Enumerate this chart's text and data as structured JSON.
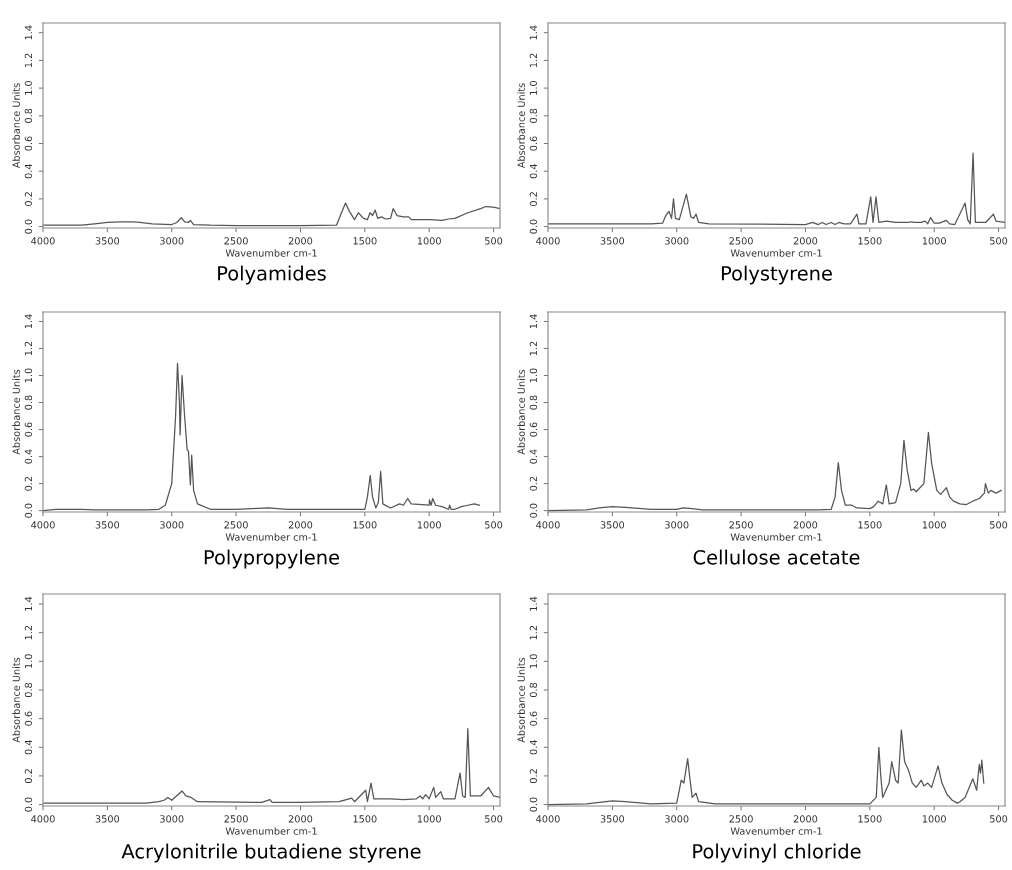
{
  "chart_data": [
    {
      "type": "line",
      "title": "Polyamides",
      "xlabel": "Wavenumber cm-1",
      "ylabel": "Absorbance Units",
      "xlim": [
        4000,
        450
      ],
      "ylim": [
        -0.01,
        1.47
      ],
      "xticks": [
        4000,
        3500,
        3000,
        2500,
        2000,
        1500,
        1000,
        500
      ],
      "yticks": [
        {
          "value": 0,
          "label": "0.0"
        },
        {
          "value": 0.2,
          "label": "0.2"
        },
        {
          "value": 0.4,
          "label": "0.4"
        },
        {
          "value": 0.6,
          "label": "0.6"
        },
        {
          "value": 0.8,
          "label": "0.8"
        },
        {
          "value": 1.0,
          "label": "1.0"
        },
        {
          "value": 1.2,
          "label": "1.2"
        },
        {
          "value": 1.4,
          "label": "1.4"
        }
      ],
      "grid": false,
      "series": [
        {
          "color": "#555555",
          "x": [
            4000,
            3700,
            3600,
            3500,
            3400,
            3300,
            3250,
            3150,
            3000,
            2960,
            2925,
            2900,
            2870,
            2855,
            2830,
            2700,
            2500,
            2000,
            1720,
            1690,
            1650,
            1620,
            1580,
            1550,
            1510,
            1480,
            1460,
            1440,
            1420,
            1400,
            1370,
            1340,
            1300,
            1280,
            1250,
            1200,
            1160,
            1140,
            1000,
            900,
            850,
            800,
            700,
            600,
            560,
            500,
            450
          ],
          "values": [
            0.01,
            0.01,
            0.02,
            0.03,
            0.035,
            0.035,
            0.03,
            0.02,
            0.015,
            0.03,
            0.065,
            0.035,
            0.03,
            0.045,
            0.015,
            0.01,
            0.008,
            0.008,
            0.01,
            0.08,
            0.17,
            0.11,
            0.05,
            0.1,
            0.06,
            0.05,
            0.1,
            0.08,
            0.12,
            0.06,
            0.07,
            0.055,
            0.06,
            0.13,
            0.08,
            0.07,
            0.07,
            0.05,
            0.05,
            0.045,
            0.055,
            0.06,
            0.1,
            0.13,
            0.145,
            0.14,
            0.13
          ]
        }
      ]
    },
    {
      "type": "line",
      "title": "Polystyrene",
      "xlabel": "Wavenumber cm-1",
      "ylabel": "Absorbance Units",
      "xlim": [
        4000,
        450
      ],
      "ylim": [
        -0.01,
        1.47
      ],
      "xticks": [
        4000,
        3500,
        3000,
        2500,
        2000,
        1500,
        1000,
        500
      ],
      "yticks": [
        {
          "value": 0,
          "label": "0.0"
        },
        {
          "value": 0.2,
          "label": "0.2"
        },
        {
          "value": 0.4,
          "label": "0.4"
        },
        {
          "value": 0.6,
          "label": "0.6"
        },
        {
          "value": 0.8,
          "label": "0.8"
        },
        {
          "value": 1.0,
          "label": "1.0"
        },
        {
          "value": 1.2,
          "label": "1.2"
        },
        {
          "value": 1.4,
          "label": "1.4"
        }
      ],
      "grid": false,
      "series": [
        {
          "color": "#555555",
          "x": [
            4000,
            3200,
            3110,
            3085,
            3060,
            3040,
            3025,
            3010,
            2980,
            2925,
            2890,
            2870,
            2850,
            2830,
            2750,
            2000,
            1945,
            1900,
            1870,
            1840,
            1800,
            1770,
            1740,
            1700,
            1650,
            1600,
            1585,
            1530,
            1493,
            1475,
            1452,
            1430,
            1370,
            1300,
            1200,
            1180,
            1155,
            1100,
            1070,
            1050,
            1028,
            1000,
            960,
            906,
            880,
            840,
            760,
            740,
            720,
            698,
            680,
            620,
            600,
            540,
            520,
            450
          ],
          "values": [
            0.02,
            0.02,
            0.025,
            0.08,
            0.11,
            0.06,
            0.2,
            0.06,
            0.05,
            0.235,
            0.07,
            0.06,
            0.09,
            0.03,
            0.02,
            0.015,
            0.03,
            0.015,
            0.03,
            0.015,
            0.03,
            0.015,
            0.03,
            0.02,
            0.02,
            0.09,
            0.02,
            0.02,
            0.215,
            0.03,
            0.215,
            0.03,
            0.04,
            0.03,
            0.03,
            0.035,
            0.03,
            0.03,
            0.04,
            0.02,
            0.065,
            0.025,
            0.025,
            0.045,
            0.02,
            0.015,
            0.17,
            0.05,
            0.02,
            0.53,
            0.03,
            0.03,
            0.03,
            0.09,
            0.04,
            0.03
          ]
        }
      ]
    },
    {
      "type": "line",
      "title": "Polypropylene",
      "xlabel": "Wavenumber cm-1",
      "ylabel": "Absorbance Units",
      "xlim": [
        4000,
        450
      ],
      "ylim": [
        -0.01,
        1.47
      ],
      "xticks": [
        4000,
        3500,
        3000,
        2500,
        2000,
        1500,
        1000,
        500
      ],
      "yticks": [
        {
          "value": 0,
          "label": "0.0"
        },
        {
          "value": 0.2,
          "label": "0.2"
        },
        {
          "value": 0.4,
          "label": "0.4"
        },
        {
          "value": 0.6,
          "label": "0.6"
        },
        {
          "value": 0.8,
          "label": "0.8"
        },
        {
          "value": 1.0,
          "label": "1.0"
        },
        {
          "value": 1.2,
          "label": "1.2"
        },
        {
          "value": 1.4,
          "label": "1.4"
        }
      ],
      "grid": false,
      "series": [
        {
          "color": "#555555",
          "x": [
            4000,
            3900,
            3800,
            3700,
            3600,
            3200,
            3100,
            3050,
            3000,
            2970,
            2955,
            2940,
            2935,
            2920,
            2900,
            2880,
            2870,
            2855,
            2845,
            2830,
            2800,
            2700,
            2500,
            2250,
            2100,
            1800,
            1500,
            1480,
            1458,
            1440,
            1415,
            1395,
            1377,
            1360,
            1300,
            1230,
            1200,
            1167,
            1140,
            1000,
            998,
            985,
            973,
            950,
            900,
            850,
            841,
            830,
            800,
            750,
            700,
            650,
            610
          ],
          "values": [
            0,
            0.01,
            0.01,
            0.01,
            0.005,
            0.005,
            0.01,
            0.04,
            0.2,
            0.7,
            1.09,
            0.8,
            0.56,
            1.0,
            0.7,
            0.45,
            0.44,
            0.19,
            0.41,
            0.15,
            0.05,
            0.01,
            0.01,
            0.02,
            0.01,
            0.01,
            0.01,
            0.1,
            0.26,
            0.1,
            0.02,
            0.06,
            0.29,
            0.05,
            0.02,
            0.05,
            0.04,
            0.09,
            0.05,
            0.04,
            0.08,
            0.04,
            0.09,
            0.04,
            0.03,
            0.01,
            0.04,
            0.01,
            0.01,
            0.03,
            0.04,
            0.05,
            0.04
          ]
        }
      ]
    },
    {
      "type": "line",
      "title": "Cellulose acetate",
      "xlabel": "Wavenumber cm-1",
      "ylabel": "Absorbance Units",
      "xlim": [
        4000,
        450
      ],
      "ylim": [
        -0.01,
        1.47
      ],
      "xticks": [
        4000,
        3500,
        3000,
        2500,
        2000,
        1500,
        1000,
        500
      ],
      "yticks": [
        {
          "value": 0,
          "label": "0.0"
        },
        {
          "value": 0.2,
          "label": "0.2"
        },
        {
          "value": 0.4,
          "label": "0.4"
        },
        {
          "value": 0.6,
          "label": "0.6"
        },
        {
          "value": 0.8,
          "label": "0.8"
        },
        {
          "value": 1.0,
          "label": "1.0"
        },
        {
          "value": 1.2,
          "label": "1.2"
        },
        {
          "value": 1.4,
          "label": "1.4"
        }
      ],
      "grid": false,
      "series": [
        {
          "color": "#555555",
          "x": [
            4000,
            3700,
            3600,
            3500,
            3400,
            3200,
            3000,
            2950,
            2880,
            2800,
            2000,
            1900,
            1800,
            1770,
            1745,
            1720,
            1690,
            1640,
            1600,
            1500,
            1470,
            1435,
            1400,
            1372,
            1350,
            1300,
            1260,
            1235,
            1210,
            1180,
            1160,
            1140,
            1120,
            1080,
            1045,
            1020,
            980,
            950,
            905,
            880,
            850,
            800,
            750,
            700,
            650,
            610,
            602,
            580,
            560,
            520,
            480
          ],
          "values": [
            0,
            0.005,
            0.02,
            0.03,
            0.025,
            0.01,
            0.01,
            0.02,
            0.015,
            0.005,
            0.005,
            0.005,
            0.01,
            0.1,
            0.355,
            0.15,
            0.04,
            0.04,
            0.02,
            0.015,
            0.03,
            0.07,
            0.05,
            0.19,
            0.05,
            0.06,
            0.2,
            0.52,
            0.3,
            0.15,
            0.16,
            0.14,
            0.16,
            0.2,
            0.58,
            0.35,
            0.15,
            0.12,
            0.17,
            0.1,
            0.07,
            0.05,
            0.045,
            0.07,
            0.09,
            0.13,
            0.2,
            0.13,
            0.15,
            0.13,
            0.15
          ]
        }
      ]
    },
    {
      "type": "line",
      "title": "Acrylonitrile butadiene styrene",
      "xlabel": "Wavenumber cm-1",
      "ylabel": "Absorbance Units",
      "xlim": [
        4000,
        450
      ],
      "ylim": [
        -0.01,
        1.47
      ],
      "xticks": [
        4000,
        3500,
        3000,
        2500,
        2000,
        1500,
        1000,
        500
      ],
      "yticks": [
        {
          "value": 0,
          "label": "0.0"
        },
        {
          "value": 0.2,
          "label": "0.2"
        },
        {
          "value": 0.4,
          "label": "0.4"
        },
        {
          "value": 0.6,
          "label": "0.6"
        },
        {
          "value": 0.8,
          "label": "0.8"
        },
        {
          "value": 1.0,
          "label": "1.0"
        },
        {
          "value": 1.2,
          "label": "1.2"
        },
        {
          "value": 1.4,
          "label": "1.4"
        }
      ],
      "grid": false,
      "series": [
        {
          "color": "#555555",
          "x": [
            4000,
            3200,
            3100,
            3060,
            3030,
            3000,
            2950,
            2920,
            2890,
            2850,
            2800,
            2300,
            2237,
            2220,
            2000,
            1700,
            1602,
            1580,
            1493,
            1480,
            1452,
            1430,
            1400,
            1300,
            1200,
            1100,
            1070,
            1050,
            1028,
            1000,
            965,
            950,
            910,
            890,
            800,
            760,
            740,
            720,
            700,
            680,
            600,
            540,
            500,
            450
          ],
          "values": [
            0.01,
            0.01,
            0.02,
            0.03,
            0.05,
            0.03,
            0.07,
            0.095,
            0.06,
            0.05,
            0.02,
            0.015,
            0.035,
            0.015,
            0.015,
            0.02,
            0.045,
            0.02,
            0.1,
            0.02,
            0.15,
            0.04,
            0.04,
            0.04,
            0.035,
            0.04,
            0.06,
            0.04,
            0.07,
            0.04,
            0.12,
            0.05,
            0.09,
            0.04,
            0.04,
            0.22,
            0.06,
            0.05,
            0.53,
            0.06,
            0.06,
            0.12,
            0.06,
            0.05
          ]
        }
      ]
    },
    {
      "type": "line",
      "title": "Polyvinyl chloride",
      "xlabel": "Wavenumber cm-1",
      "ylabel": "Absorbance Units",
      "xlim": [
        4000,
        450
      ],
      "ylim": [
        -0.01,
        1.47
      ],
      "xticks": [
        4000,
        3500,
        3000,
        2500,
        2000,
        1500,
        1000,
        500
      ],
      "yticks": [
        {
          "value": 0,
          "label": "0.0"
        },
        {
          "value": 0.2,
          "label": "0.2"
        },
        {
          "value": 0.4,
          "label": "0.4"
        },
        {
          "value": 0.6,
          "label": "0.6"
        },
        {
          "value": 0.8,
          "label": "0.8"
        },
        {
          "value": 1.0,
          "label": "1.0"
        },
        {
          "value": 1.2,
          "label": "1.2"
        },
        {
          "value": 1.4,
          "label": "1.4"
        }
      ],
      "grid": false,
      "series": [
        {
          "color": "#555555",
          "x": [
            4000,
            3700,
            3600,
            3500,
            3400,
            3200,
            3000,
            2980,
            2965,
            2945,
            2915,
            2900,
            2880,
            2850,
            2830,
            2700,
            1500,
            1450,
            1430,
            1415,
            1400,
            1350,
            1330,
            1300,
            1280,
            1255,
            1230,
            1200,
            1170,
            1140,
            1100,
            1080,
            1050,
            1020,
            970,
            940,
            900,
            860,
            820,
            800,
            760,
            700,
            670,
            650,
            640,
            630,
            620,
            615
          ],
          "values": [
            0,
            0.005,
            0.015,
            0.025,
            0.02,
            0.005,
            0.01,
            0.1,
            0.17,
            0.15,
            0.32,
            0.2,
            0.05,
            0.08,
            0.02,
            0.005,
            0.005,
            0.05,
            0.4,
            0.2,
            0.05,
            0.15,
            0.3,
            0.17,
            0.15,
            0.52,
            0.3,
            0.24,
            0.15,
            0.12,
            0.17,
            0.13,
            0.15,
            0.12,
            0.27,
            0.15,
            0.07,
            0.03,
            0.01,
            0.02,
            0.05,
            0.18,
            0.1,
            0.28,
            0.22,
            0.31,
            0.2,
            0.15
          ]
        }
      ]
    }
  ]
}
